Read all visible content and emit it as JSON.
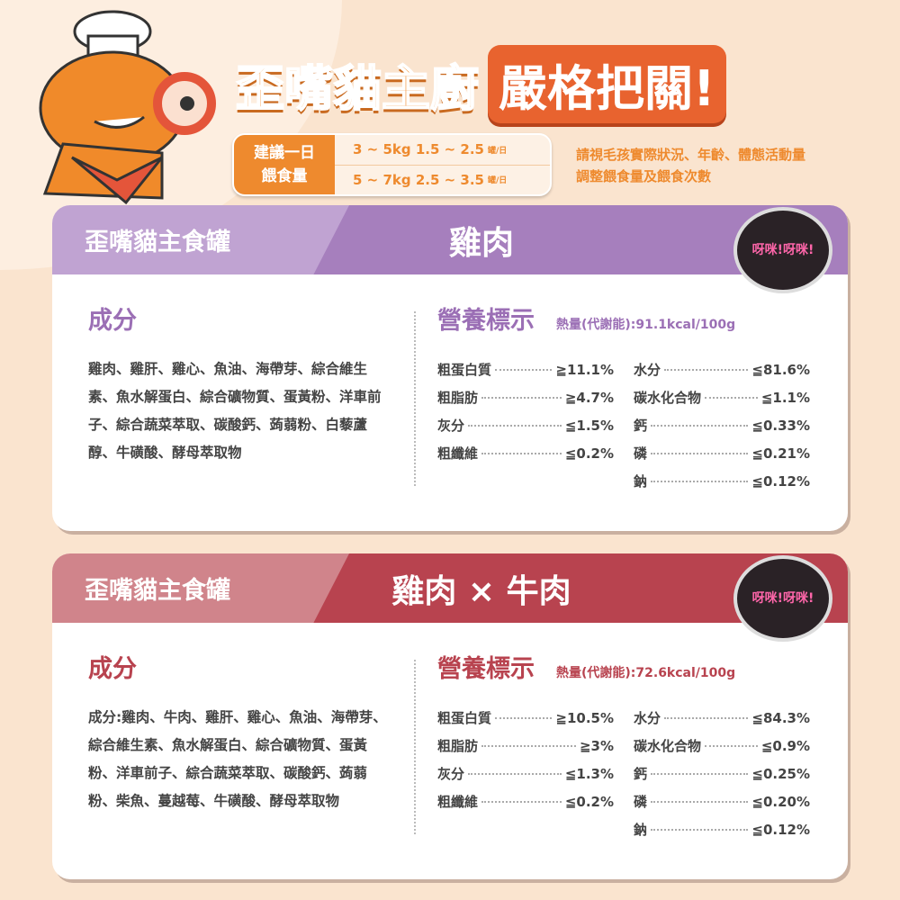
{
  "title": {
    "part1": "歪嘴貓主廚",
    "part2": "嚴格把關!"
  },
  "feeding": {
    "label_line1": "建議一日",
    "label_line2": "餵食量",
    "rows": [
      {
        "weight": "3 ~ 5kg 1.5 ~ 2.5",
        "unit": "罐/日"
      },
      {
        "weight": "5 ~ 7kg 2.5 ~ 3.5",
        "unit": "罐/日"
      }
    ],
    "note_line1": "請視毛孩實際狀況、年齡、體態活動量",
    "note_line2": "調整餵食量及餵食次數"
  },
  "colors": {
    "accent": "#ee8a2e",
    "purple": "#a67fbd",
    "red": "#b8434f"
  },
  "products": [
    {
      "line": "歪嘴貓主食罐",
      "flavor": "雞肉",
      "can_text": "呀咪!呀咪!",
      "ingredients_heading": "成分",
      "ingredients": "雞肉、雞肝、雞心、魚油、海帶芽、綜合維生素、魚水解蛋白、綜合礦物質、蛋黃粉、洋車前子、綜合蔬菜萃取、碳酸鈣、蒟蒻粉、白藜蘆醇、牛磺酸、酵母萃取物",
      "nutrition_heading": "營養標示",
      "kcal": "熱量(代謝能):91.1kcal/100g",
      "left": [
        {
          "label": "粗蛋白質",
          "value": "≧11.1%"
        },
        {
          "label": "粗脂肪",
          "value": "≧4.7%"
        },
        {
          "label": "灰分",
          "value": "≦1.5%"
        },
        {
          "label": "粗纖維",
          "value": "≦0.2%"
        }
      ],
      "right": [
        {
          "label": "水分",
          "value": "≦81.6%"
        },
        {
          "label": "碳水化合物",
          "value": "≦1.1%"
        },
        {
          "label": "鈣",
          "value": "≦0.33%"
        },
        {
          "label": "磷",
          "value": "≦0.21%"
        },
        {
          "label": "鈉",
          "value": "≦0.12%"
        }
      ]
    },
    {
      "line": "歪嘴貓主食罐",
      "flavor": "雞肉 × 牛肉",
      "can_text": "呀咪!呀咪!",
      "ingredients_heading": "成分",
      "ingredients": "成分:雞肉、牛肉、雞肝、雞心、魚油、海帶芽、綜合維生素、魚水解蛋白、綜合礦物質、蛋黃粉、洋車前子、綜合蔬菜萃取、碳酸鈣、蒟蒻粉、柴魚、蔓越莓、牛磺酸、酵母萃取物",
      "nutrition_heading": "營養標示",
      "kcal": "熱量(代謝能):72.6kcal/100g",
      "left": [
        {
          "label": "粗蛋白質",
          "value": "≧10.5%"
        },
        {
          "label": "粗脂肪",
          "value": "≧3%"
        },
        {
          "label": "灰分",
          "value": "≦1.3%"
        },
        {
          "label": "粗纖維",
          "value": "≦0.2%"
        }
      ],
      "right": [
        {
          "label": "水分",
          "value": "≦84.3%"
        },
        {
          "label": "碳水化合物",
          "value": "≦0.9%"
        },
        {
          "label": "鈣",
          "value": "≦0.25%"
        },
        {
          "label": "磷",
          "value": "≦0.20%"
        },
        {
          "label": "鈉",
          "value": "≦0.12%"
        }
      ]
    }
  ]
}
